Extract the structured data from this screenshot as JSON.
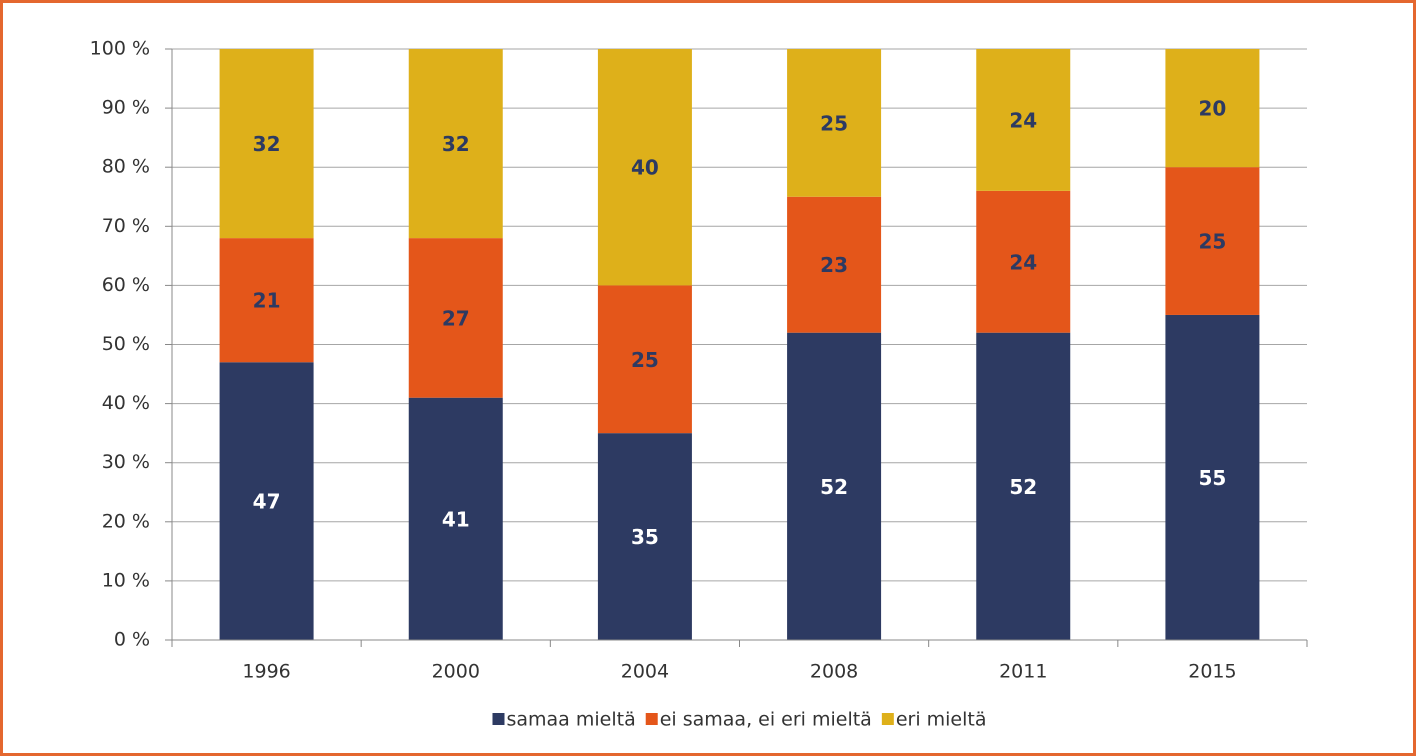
{
  "chart_data": {
    "type": "stacked_bar",
    "categories": [
      "1996",
      "2000",
      "2004",
      "2008",
      "2011",
      "2015"
    ],
    "series": [
      {
        "name": "samaa mieltä",
        "color": "#2d3a62",
        "values": [
          47,
          41,
          35,
          52,
          52,
          55
        ]
      },
      {
        "name": "ei samaa, ei eri mieltä",
        "color": "#e4561a",
        "values": [
          21,
          27,
          25,
          23,
          24,
          25
        ]
      },
      {
        "name": "eri mieltä",
        "color": "#deb01a",
        "values": [
          32,
          32,
          40,
          25,
          24,
          20
        ]
      }
    ],
    "ylim": [
      0,
      100
    ],
    "yticks": [
      {
        "value": 0,
        "label": "0 %"
      },
      {
        "value": 10,
        "label": "10 %"
      },
      {
        "value": 20,
        "label": "20 %"
      },
      {
        "value": 30,
        "label": "30 %"
      },
      {
        "value": 40,
        "label": "40 %"
      },
      {
        "value": 50,
        "label": "50 %"
      },
      {
        "value": 60,
        "label": "60 %"
      },
      {
        "value": 70,
        "label": "70 %"
      },
      {
        "value": 80,
        "label": "80 %"
      },
      {
        "value": 90,
        "label": "90 %"
      },
      {
        "value": 100,
        "label": "100 %"
      }
    ],
    "grid": true,
    "legend": "bottom"
  }
}
